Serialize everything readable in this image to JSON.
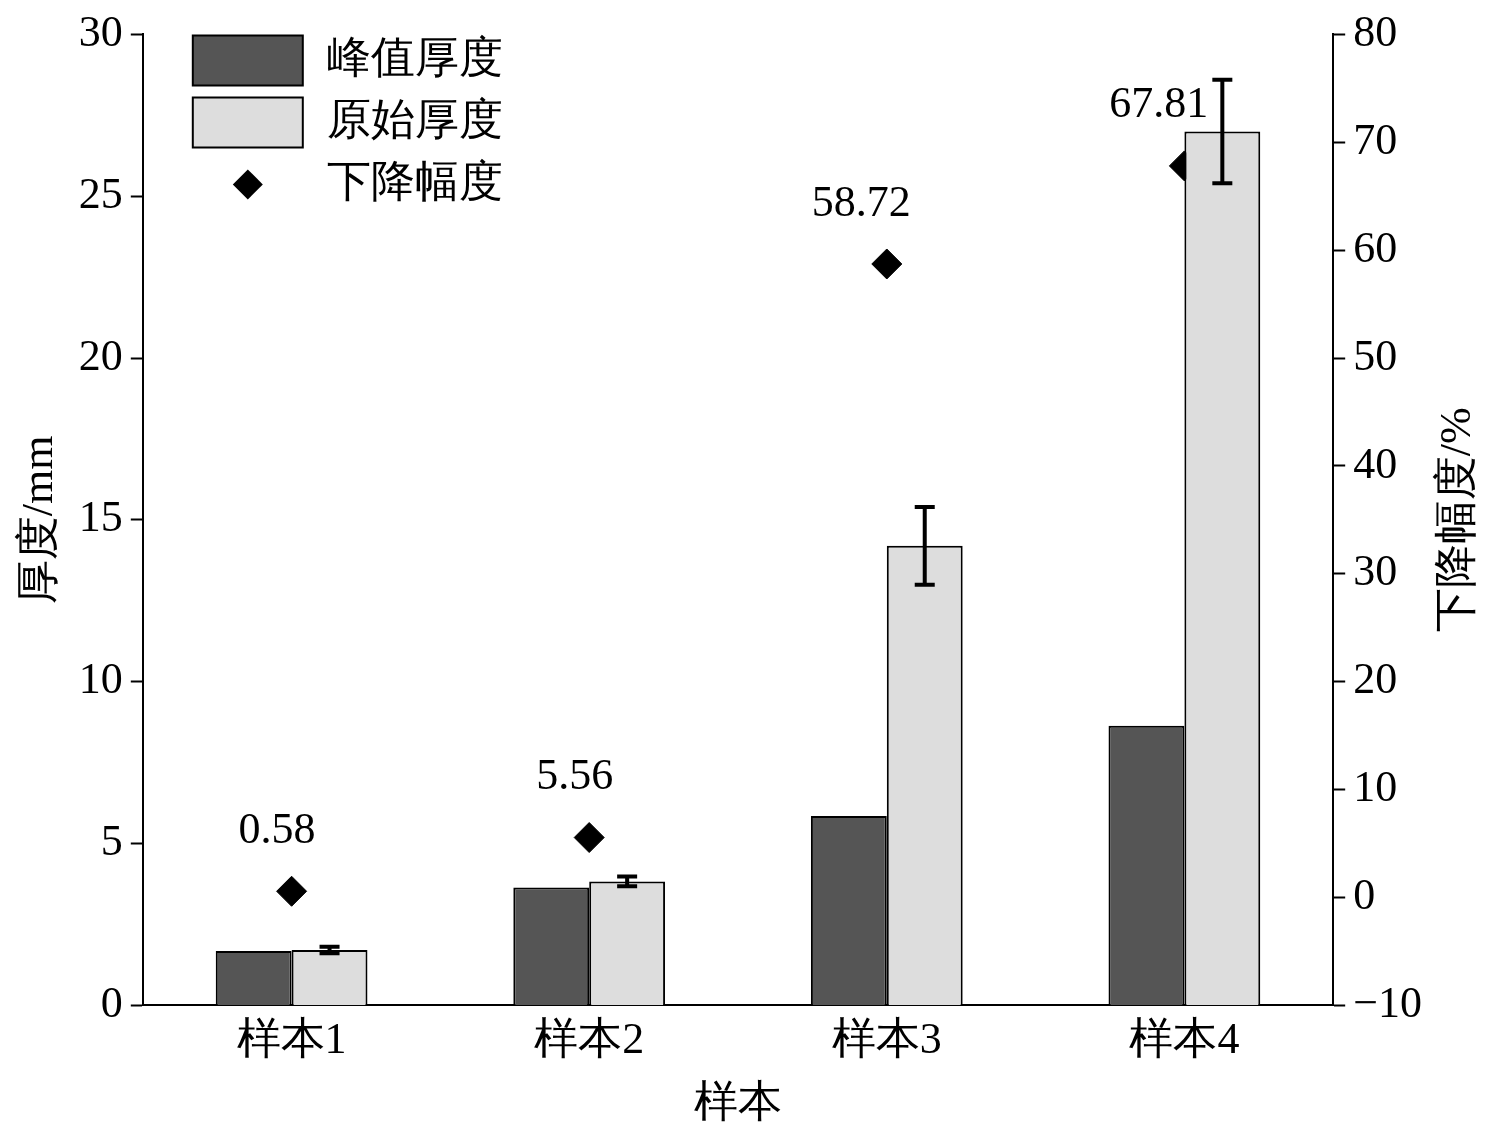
{
  "chart_data": {
    "type": "bar",
    "xlabel": "样本",
    "ylabel": "厚度/mm",
    "y2label": "下降幅度/%",
    "categories": [
      "样本1",
      "样本2",
      "样本3",
      "样本4"
    ],
    "series": [
      {
        "name": "峰值厚度",
        "color": "#555555",
        "values": [
          1.68,
          3.64,
          5.85,
          8.64
        ]
      },
      {
        "name": "原始厚度",
        "color": "#dddddd",
        "values": [
          1.71,
          3.83,
          14.2,
          27.0
        ],
        "errors": [
          0.1,
          0.15,
          1.2,
          1.6
        ]
      },
      {
        "name": "下降幅度",
        "type": "scatter",
        "axis": "y2",
        "color": "#000000",
        "marker": "diamond",
        "x": [
          "样本1",
          "样本2",
          "样本3",
          "样本4"
        ],
        "values": [
          0.58,
          5.56,
          58.72,
          67.81
        ],
        "value_labels": [
          "0.58",
          "5.56",
          "58.72",
          "67.81"
        ]
      }
    ],
    "ylim": [
      0,
      30
    ],
    "yticks": [
      0,
      5,
      10,
      15,
      20,
      25,
      30
    ],
    "y2lim": [
      -10,
      80
    ],
    "y2ticks": [
      {
        "value": -10,
        "label": "−10"
      },
      0,
      10,
      20,
      30,
      40,
      50,
      60,
      70,
      80
    ],
    "legend": "top left",
    "grid": false
  }
}
